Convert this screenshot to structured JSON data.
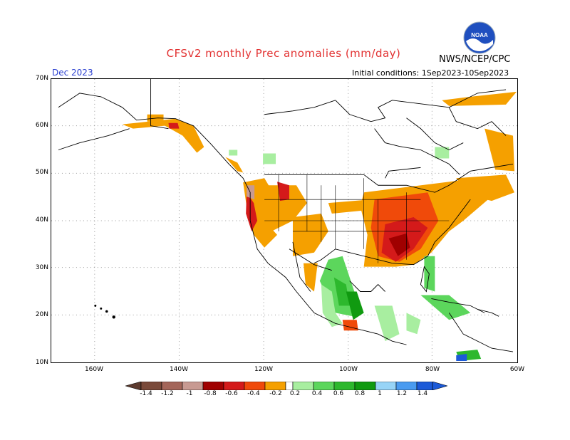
{
  "title": "CFSv2 monthly Prec anomalies (mm/day)",
  "org_label": "NWS/NCEP/CPC",
  "logo_text": "NOAA",
  "month": "Dec 2023",
  "initial_conditions": "Initial conditions: 1Sep2023-10Sep2023",
  "lat_labels": [
    "70N",
    "60N",
    "50N",
    "40N",
    "30N",
    "20N",
    "10N"
  ],
  "lon_labels": [
    "160W",
    "140W",
    "120W",
    "100W",
    "80W",
    "60W"
  ],
  "colorbar": {
    "labels": [
      "-1.4",
      "-1.2",
      "-1",
      "-0.8",
      "-0.6",
      "-0.4",
      "-0.2",
      "0.2",
      "0.4",
      "0.6",
      "0.8",
      "1",
      "1.2",
      "1.4"
    ],
    "colors": [
      "#7a4a3a",
      "#a4665a",
      "#c89a92",
      "#a00000",
      "#d41a1a",
      "#f04a0a",
      "#f5a000",
      "#ffffff",
      "#a8eea0",
      "#5cd65c",
      "#2db82d",
      "#109a10",
      "#97d4f7",
      "#4a9bf0",
      "#1c5ad8"
    ]
  },
  "colors": {
    "title": "#e23030",
    "month": "#2a3fd0",
    "dry_light": "#f5a000",
    "dry_mid": "#f04a0a",
    "dry_strong": "#c41010",
    "wet_light": "#a8eea0",
    "wet_mid": "#5cd65c",
    "wet_strong": "#109a10"
  }
}
